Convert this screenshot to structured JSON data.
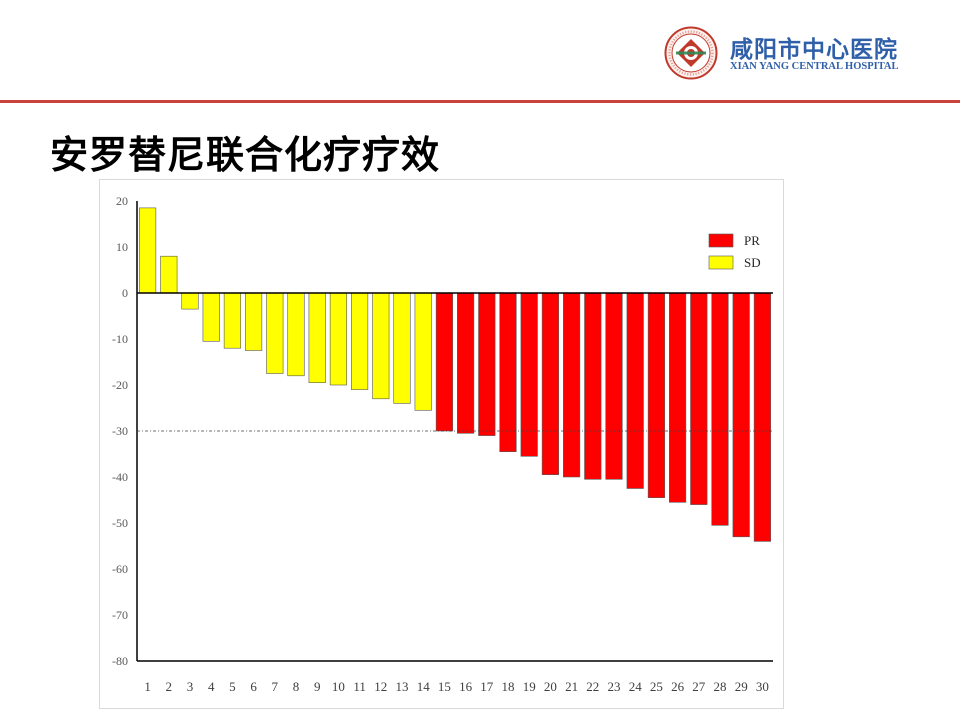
{
  "header": {
    "hospital_name_cn": "咸阳市中心医院",
    "hospital_name_en": "XIAN YANG CENTRAL HOSPITAL",
    "rule_color": "#c8433c"
  },
  "page": {
    "title": "安罗替尼联合化疗疗效"
  },
  "chart_data": {
    "type": "bar",
    "title": "",
    "xlabel": "",
    "ylabel": "",
    "ylim": [
      -80,
      20
    ],
    "yticks": [
      20,
      10,
      0,
      -10,
      -20,
      -30,
      -40,
      -50,
      -60,
      -70,
      -80
    ],
    "reference_line": -30,
    "categories": [
      "1",
      "2",
      "3",
      "4",
      "5",
      "6",
      "7",
      "8",
      "9",
      "10",
      "11",
      "12",
      "13",
      "14",
      "15",
      "16",
      "17",
      "18",
      "19",
      "20",
      "21",
      "22",
      "23",
      "24",
      "25",
      "26",
      "27",
      "28",
      "29",
      "30"
    ],
    "values": [
      18.5,
      8,
      -3.5,
      -10.5,
      -12,
      -12.5,
      -17.5,
      -18,
      -19.5,
      -20,
      -21,
      -23,
      -24,
      -25.5,
      -30,
      -30.5,
      -31,
      -34.5,
      -35.5,
      -39.5,
      -40,
      -40.5,
      -40.5,
      -42.5,
      -44.5,
      -45.5,
      -46,
      -50.5,
      -53,
      -54
    ],
    "response": [
      "SD",
      "SD",
      "SD",
      "SD",
      "SD",
      "SD",
      "SD",
      "SD",
      "SD",
      "SD",
      "SD",
      "SD",
      "SD",
      "SD",
      "PR",
      "PR",
      "PR",
      "PR",
      "PR",
      "PR",
      "PR",
      "PR",
      "PR",
      "PR",
      "PR",
      "PR",
      "PR",
      "PR",
      "PR",
      "PR"
    ],
    "legend": [
      {
        "name": "PR",
        "color": "#ff0000"
      },
      {
        "name": "SD",
        "color": "#ffff00"
      }
    ],
    "legend_position": "top-right",
    "grid": false
  }
}
